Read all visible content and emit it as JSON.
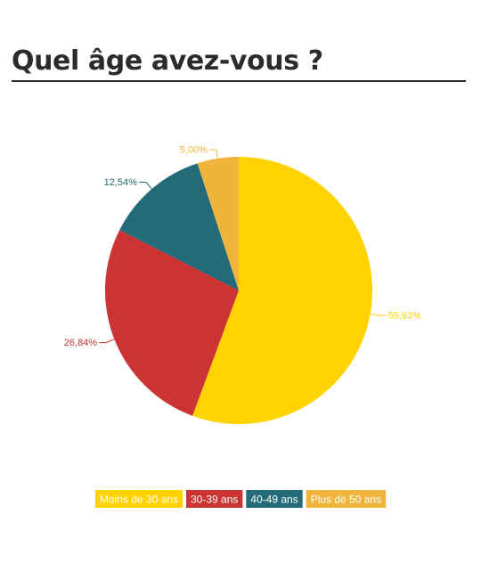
{
  "title": "Quel âge avez-vous ?",
  "chart_data": {
    "type": "pie",
    "categories": [
      "Moins de 30 ans",
      "30-39 ans",
      "40-49 ans",
      "Plus de 50 ans"
    ],
    "values": [
      55.63,
      26.84,
      12.54,
      5.0
    ],
    "labels": [
      "55,63%",
      "26,84%",
      "12,54%",
      "5,00%"
    ],
    "colors": [
      "#FFD200",
      "#CC3333",
      "#236B78",
      "#F0B43C"
    ],
    "legend_text_color": "#ffffff",
    "legend_position": "bottom",
    "start": "12 o'clock",
    "direction": "clockwise"
  }
}
